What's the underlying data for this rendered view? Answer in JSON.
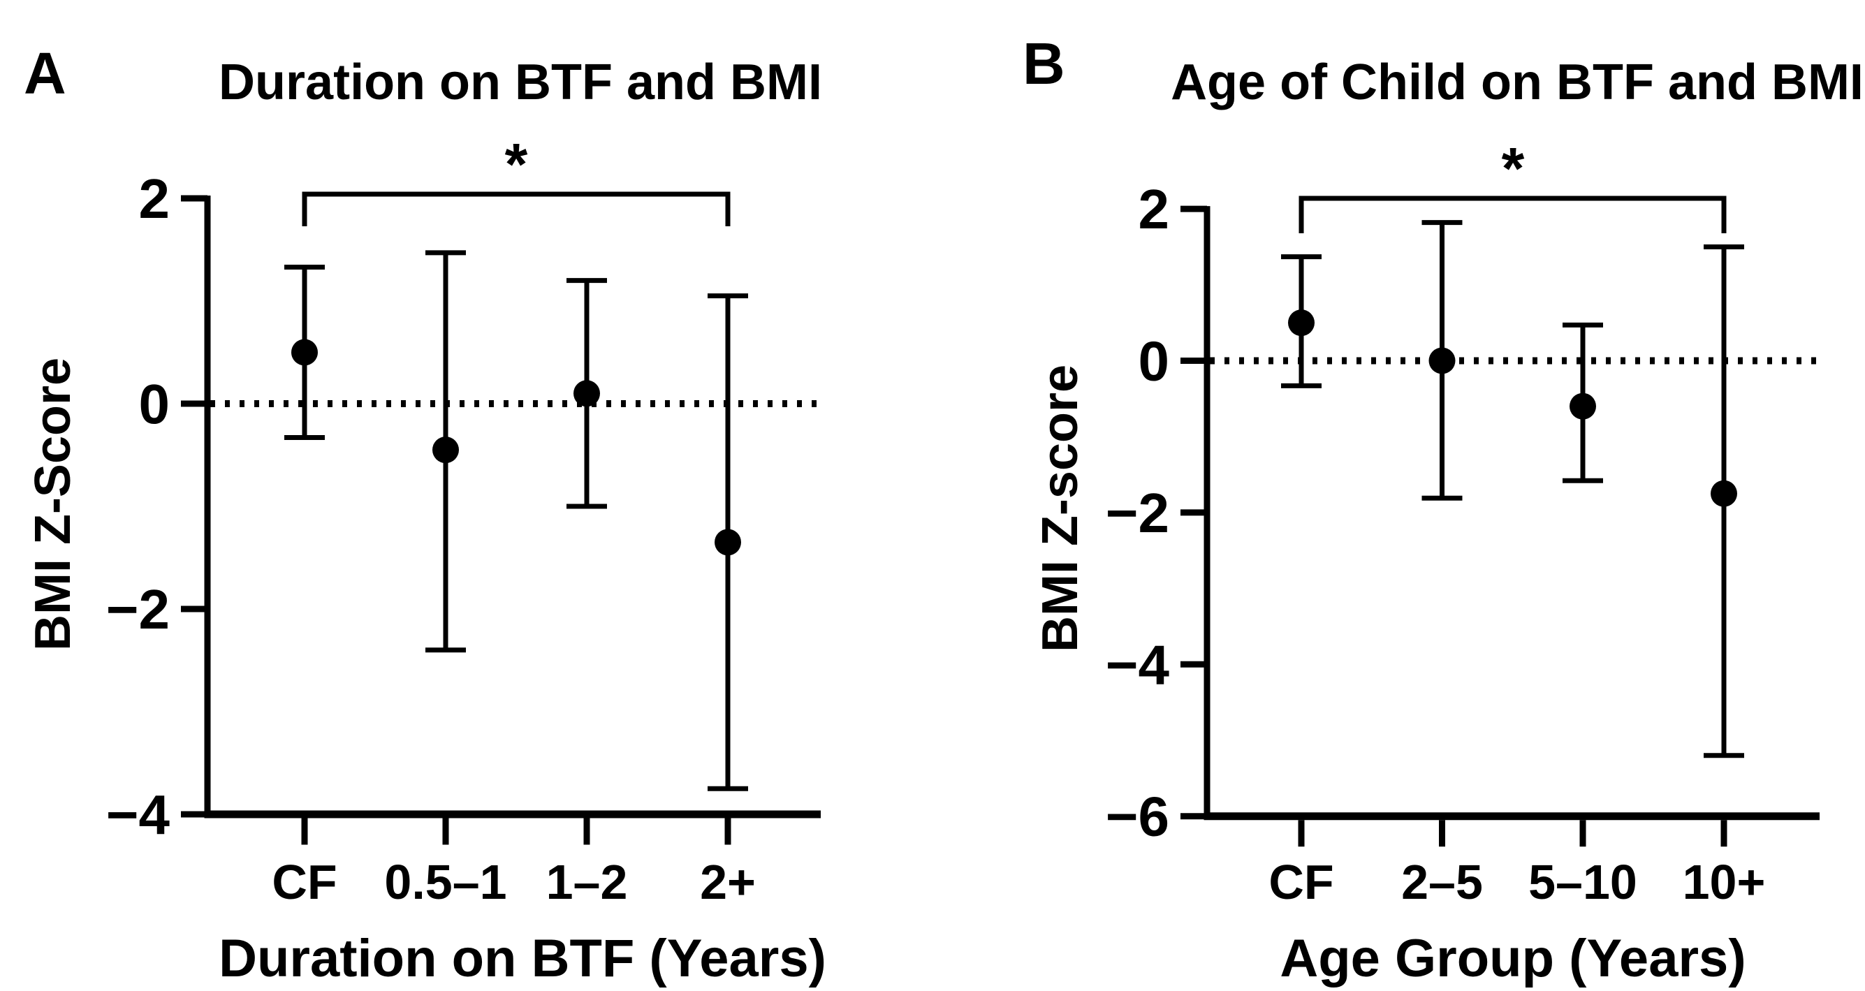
{
  "figure": {
    "background_color": "#ffffff",
    "ink_color": "#000000",
    "panel_letters": {
      "a": "A",
      "b": "B"
    }
  },
  "chart_data": [
    {
      "panel": "A",
      "type": "scatter",
      "title": "Duration on BTF and BMI",
      "xlabel": "Duration on BTF (Years)",
      "ylabel": "BMI Z-Score",
      "categories": [
        "CF",
        "0.5–1",
        "1–2",
        "2+"
      ],
      "points": [
        {
          "category": "CF",
          "mean": 0.5,
          "ci_low": -0.33,
          "ci_high": 1.33
        },
        {
          "category": "0.5–1",
          "mean": -0.45,
          "ci_low": -2.4,
          "ci_high": 1.47
        },
        {
          "category": "1–2",
          "mean": 0.1,
          "ci_low": -1.0,
          "ci_high": 1.2
        },
        {
          "category": "2+",
          "mean": -1.35,
          "ci_low": -3.75,
          "ci_high": 1.05
        }
      ],
      "ylim": [
        -4,
        2
      ],
      "yticks": [
        2,
        0,
        -2,
        -4
      ],
      "zero_reference_line": 0,
      "grid": false,
      "legend": null,
      "significance_bracket": {
        "from_category": "CF",
        "to_category": "2+",
        "label": "*"
      }
    },
    {
      "panel": "B",
      "type": "scatter",
      "title": "Age of Child on BTF and BMI",
      "xlabel": "Age Group (Years)",
      "ylabel": "BMI Z-score",
      "categories": [
        "CF",
        "2–5",
        "5–10",
        "10+"
      ],
      "points": [
        {
          "category": "CF",
          "mean": 0.5,
          "ci_low": -0.33,
          "ci_high": 1.37
        },
        {
          "category": "2–5",
          "mean": 0.0,
          "ci_low": -1.81,
          "ci_high": 1.82
        },
        {
          "category": "5–10",
          "mean": -0.6,
          "ci_low": -1.58,
          "ci_high": 0.47
        },
        {
          "category": "10+",
          "mean": -1.75,
          "ci_low": -5.2,
          "ci_high": 1.5
        }
      ],
      "ylim": [
        -6,
        2
      ],
      "yticks": [
        2,
        0,
        -2,
        -4,
        -6
      ],
      "zero_reference_line": 0,
      "grid": false,
      "legend": null,
      "significance_bracket": {
        "from_category": "CF",
        "to_category": "10+",
        "label": "*"
      }
    }
  ]
}
